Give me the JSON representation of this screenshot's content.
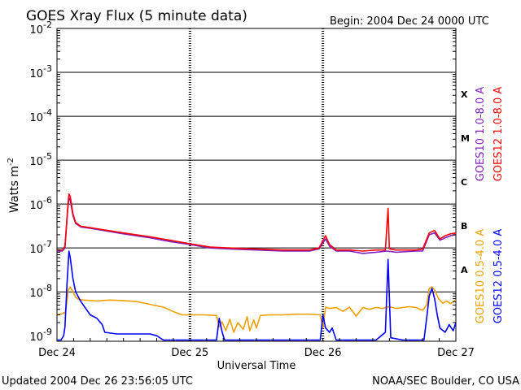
{
  "chart_data": {
    "type": "line",
    "title": "GOES Xray Flux (5 minute data)",
    "begin_text": "Begin:  2004 Dec 24 0000 UTC",
    "xlabel": "Universal Time",
    "ylabel": "Watts m",
    "ylabel_sup": "-2",
    "x_unit": "days since 2004 Dec 24 0000 UTC",
    "xlim": [
      0,
      3
    ],
    "ylim": [
      7.5e-10,
      0.01
    ],
    "yscale": "log",
    "x_ticks": [
      {
        "value": 0,
        "label": "Dec 24"
      },
      {
        "value": 1,
        "label": "Dec 25"
      },
      {
        "value": 2,
        "label": "Dec 26"
      },
      {
        "value": 3,
        "label": "Dec 27"
      }
    ],
    "y_ticks": [
      {
        "value": 1e-09,
        "base": "10",
        "exp": "-9"
      },
      {
        "value": 1e-08,
        "base": "10",
        "exp": "-8"
      },
      {
        "value": 1e-07,
        "base": "10",
        "exp": "-7"
      },
      {
        "value": 1e-06,
        "base": "10",
        "exp": "-6"
      },
      {
        "value": 1e-05,
        "base": "10",
        "exp": "-5"
      },
      {
        "value": 0.0001,
        "base": "10",
        "exp": "-4"
      },
      {
        "value": 0.001,
        "base": "10",
        "exp": "-3"
      },
      {
        "value": 0.01,
        "base": "10",
        "exp": "-2"
      }
    ],
    "flare_classes": [
      {
        "label": "X",
        "y": 0.000316
      },
      {
        "label": "M",
        "y": 3.16e-05
      },
      {
        "label": "C",
        "y": 3.16e-06
      },
      {
        "label": "B",
        "y": 3.16e-07
      },
      {
        "label": "A",
        "y": 3.16e-08
      }
    ],
    "grid": true,
    "legend_position": "right",
    "series": [
      {
        "name": "GOES10 0.5-4.0 A",
        "color": "#f0a000",
        "points": [
          [
            0,
            3e-09
          ],
          [
            0.04,
            3.2e-09
          ],
          [
            0.065,
            3.5e-09
          ],
          [
            0.085,
            1.1e-08
          ],
          [
            0.1,
            1.3e-08
          ],
          [
            0.12,
            1e-08
          ],
          [
            0.14,
            7.5e-09
          ],
          [
            0.16,
            6.8e-09
          ],
          [
            0.2,
            6.5e-09
          ],
          [
            0.3,
            6.2e-09
          ],
          [
            0.4,
            6.5e-09
          ],
          [
            0.5,
            6.3e-09
          ],
          [
            0.6,
            6e-09
          ],
          [
            0.7,
            5.2e-09
          ],
          [
            0.8,
            4.5e-09
          ],
          [
            0.88,
            3.5e-09
          ],
          [
            0.94,
            3e-09
          ],
          [
            1.0,
            3e-09
          ],
          [
            1.1,
            3e-09
          ],
          [
            1.2,
            2.9e-09
          ],
          [
            1.22,
            1.6e-09
          ],
          [
            1.24,
            2.1e-09
          ],
          [
            1.27,
            1.3e-09
          ],
          [
            1.3,
            2.4e-09
          ],
          [
            1.33,
            1.2e-09
          ],
          [
            1.36,
            2e-09
          ],
          [
            1.4,
            1.4e-09
          ],
          [
            1.43,
            2.7e-09
          ],
          [
            1.45,
            1.3e-09
          ],
          [
            1.48,
            2.3e-09
          ],
          [
            1.5,
            1.5e-09
          ],
          [
            1.53,
            2.9e-09
          ],
          [
            1.6,
            3e-09
          ],
          [
            1.7,
            3e-09
          ],
          [
            1.8,
            3.1e-09
          ],
          [
            1.9,
            3.1e-09
          ],
          [
            1.98,
            3e-09
          ],
          [
            2.0,
            1.5e-09
          ],
          [
            2.02,
            4.5e-09
          ],
          [
            2.05,
            4.2e-09
          ],
          [
            2.1,
            4.4e-09
          ],
          [
            2.15,
            3.6e-09
          ],
          [
            2.2,
            4.5e-09
          ],
          [
            2.25,
            2.8e-09
          ],
          [
            2.3,
            4.4e-09
          ],
          [
            2.35,
            4e-09
          ],
          [
            2.4,
            4.4e-09
          ],
          [
            2.45,
            4.2e-09
          ],
          [
            2.5,
            4.6e-09
          ],
          [
            2.55,
            4.2e-09
          ],
          [
            2.6,
            4.4e-09
          ],
          [
            2.65,
            4.6e-09
          ],
          [
            2.7,
            4.4e-09
          ],
          [
            2.75,
            3.8e-09
          ],
          [
            2.78,
            5e-09
          ],
          [
            2.8,
            1.2e-08
          ],
          [
            2.82,
            1.3e-08
          ],
          [
            2.84,
            1.1e-08
          ],
          [
            2.87,
            7e-09
          ],
          [
            2.9,
            5.5e-09
          ],
          [
            2.93,
            6.2e-09
          ],
          [
            2.96,
            5.4e-09
          ],
          [
            3.0,
            6.5e-09
          ]
        ]
      },
      {
        "name": "GOES12 0.5-4.0 A",
        "color": "#0000ff",
        "points": [
          [
            0,
            8e-10
          ],
          [
            0.03,
            8e-10
          ],
          [
            0.05,
            1e-09
          ],
          [
            0.06,
            1.6e-09
          ],
          [
            0.075,
            1.5e-08
          ],
          [
            0.09,
            8.5e-08
          ],
          [
            0.1,
            6e-08
          ],
          [
            0.12,
            2e-08
          ],
          [
            0.14,
            1e-08
          ],
          [
            0.18,
            6e-09
          ],
          [
            0.25,
            3e-09
          ],
          [
            0.3,
            2.5e-09
          ],
          [
            0.34,
            1.8e-09
          ],
          [
            0.36,
            1.2e-09
          ],
          [
            0.45,
            1.1e-09
          ],
          [
            0.6,
            1.1e-09
          ],
          [
            0.7,
            1.1e-09
          ],
          [
            0.75,
            1e-09
          ],
          [
            0.8,
            8e-10
          ],
          [
            0.9,
            8e-10
          ],
          [
            1.0,
            8e-10
          ],
          [
            1.2,
            8e-10
          ],
          [
            1.22,
            2.5e-09
          ],
          [
            1.24,
            1.3e-09
          ],
          [
            1.26,
            8e-10
          ],
          [
            1.4,
            8e-10
          ],
          [
            1.98,
            8e-10
          ],
          [
            2.0,
            3e-09
          ],
          [
            2.02,
            1.5e-09
          ],
          [
            2.05,
            1.2e-09
          ],
          [
            2.07,
            1.5e-09
          ],
          [
            2.1,
            8e-10
          ],
          [
            2.3,
            8e-10
          ],
          [
            2.4,
            8e-10
          ],
          [
            2.47,
            1.2e-09
          ],
          [
            2.49,
            5.5e-08
          ],
          [
            2.51,
            9e-10
          ],
          [
            2.6,
            8e-10
          ],
          [
            2.76,
            8e-10
          ],
          [
            2.78,
            2.5e-09
          ],
          [
            2.8,
            8e-09
          ],
          [
            2.82,
            1.2e-08
          ],
          [
            2.84,
            7e-09
          ],
          [
            2.86,
            3e-09
          ],
          [
            2.88,
            1.5e-09
          ],
          [
            2.92,
            1.2e-09
          ],
          [
            2.95,
            1.8e-09
          ],
          [
            2.98,
            1.3e-09
          ],
          [
            3.0,
            2e-09
          ]
        ]
      },
      {
        "name": "GOES10 1.0-8.0 A",
        "color": "#8020c0",
        "points": [
          [
            0,
            8.5e-08
          ],
          [
            0.04,
            8.5e-08
          ],
          [
            0.06,
            1e-07
          ],
          [
            0.08,
            7e-07
          ],
          [
            0.09,
            1.4e-06
          ],
          [
            0.1,
            1.2e-06
          ],
          [
            0.12,
            5.5e-07
          ],
          [
            0.14,
            3.6e-07
          ],
          [
            0.18,
            3e-07
          ],
          [
            0.25,
            2.8e-07
          ],
          [
            0.35,
            2.5e-07
          ],
          [
            0.5,
            2.1e-07
          ],
          [
            0.7,
            1.7e-07
          ],
          [
            0.85,
            1.4e-07
          ],
          [
            1.0,
            1.2e-07
          ],
          [
            1.15,
            1e-07
          ],
          [
            1.3,
            9.5e-08
          ],
          [
            1.5,
            9e-08
          ],
          [
            1.7,
            8.5e-08
          ],
          [
            1.9,
            8.5e-08
          ],
          [
            1.97,
            9.5e-08
          ],
          [
            2.02,
            1.6e-07
          ],
          [
            2.05,
            1.1e-07
          ],
          [
            2.1,
            8.5e-08
          ],
          [
            2.2,
            8.5e-08
          ],
          [
            2.3,
            7.5e-08
          ],
          [
            2.4,
            8e-08
          ],
          [
            2.48,
            8.5e-08
          ],
          [
            2.55,
            8e-08
          ],
          [
            2.7,
            8.5e-08
          ],
          [
            2.75,
            8.5e-08
          ],
          [
            2.8,
            2e-07
          ],
          [
            2.84,
            2.2e-07
          ],
          [
            2.88,
            1.5e-07
          ],
          [
            2.92,
            1.7e-07
          ],
          [
            2.96,
            1.9e-07
          ],
          [
            3.0,
            2e-07
          ]
        ]
      },
      {
        "name": "GOES12 1.0-8.0 A",
        "color": "#ff0000",
        "points": [
          [
            0,
            9e-08
          ],
          [
            0.04,
            9e-08
          ],
          [
            0.06,
            1.1e-07
          ],
          [
            0.08,
            8e-07
          ],
          [
            0.09,
            1.7e-06
          ],
          [
            0.1,
            1.5e-06
          ],
          [
            0.12,
            6e-07
          ],
          [
            0.14,
            3.8e-07
          ],
          [
            0.18,
            3.1e-07
          ],
          [
            0.25,
            2.9e-07
          ],
          [
            0.35,
            2.6e-07
          ],
          [
            0.5,
            2.2e-07
          ],
          [
            0.7,
            1.8e-07
          ],
          [
            0.85,
            1.5e-07
          ],
          [
            1.0,
            1.25e-07
          ],
          [
            1.15,
            1.05e-07
          ],
          [
            1.3,
            1e-07
          ],
          [
            1.5,
            9.5e-08
          ],
          [
            1.7,
            9e-08
          ],
          [
            1.9,
            9e-08
          ],
          [
            1.97,
            1e-07
          ],
          [
            2.02,
            1.9e-07
          ],
          [
            2.05,
            1.2e-07
          ],
          [
            2.1,
            9e-08
          ],
          [
            2.2,
            9e-08
          ],
          [
            2.3,
            8.5e-08
          ],
          [
            2.4,
            9e-08
          ],
          [
            2.47,
            9e-08
          ],
          [
            2.49,
            8e-07
          ],
          [
            2.5,
            9.5e-08
          ],
          [
            2.55,
            9e-08
          ],
          [
            2.7,
            9e-08
          ],
          [
            2.75,
            9.5e-08
          ],
          [
            2.8,
            2.2e-07
          ],
          [
            2.84,
            2.5e-07
          ],
          [
            2.88,
            1.6e-07
          ],
          [
            2.92,
            1.9e-07
          ],
          [
            2.96,
            2.1e-07
          ],
          [
            3.0,
            2.2e-07
          ]
        ]
      }
    ]
  },
  "footer": {
    "updated": "Updated 2004 Dec 26 23:56:05 UTC",
    "credit": "NOAA/SEC Boulder, CO USA"
  }
}
